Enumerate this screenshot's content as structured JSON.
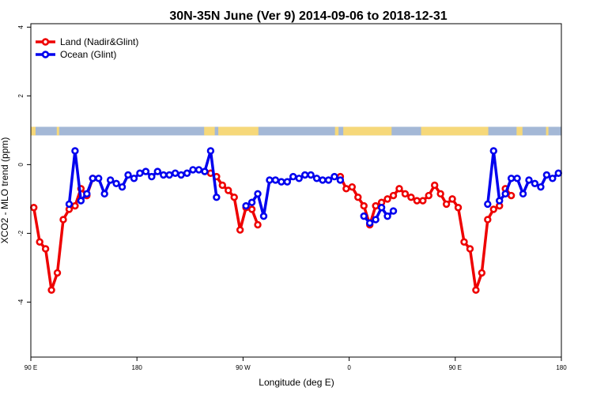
{
  "chart_data": {
    "type": "line",
    "title": "30N-35N June (Ver 9)   2014-09-06 to 2018-12-31",
    "xlabel": "Longitude (deg E)",
    "ylabel": "XCO2 - MLO trend (ppm)",
    "xlim": [
      90,
      540
    ],
    "ylim": [
      -5.6,
      4.1
    ],
    "x_ticks": [
      {
        "value": 90,
        "label": "90 E"
      },
      {
        "value": 180,
        "label": "180"
      },
      {
        "value": 270,
        "label": "90 W"
      },
      {
        "value": 360,
        "label": "0"
      },
      {
        "value": 450,
        "label": "90 E"
      },
      {
        "value": 540,
        "label": "180"
      }
    ],
    "y_ticks": [
      {
        "value": -4,
        "label": "-4"
      },
      {
        "value": -2,
        "label": "-2"
      },
      {
        "value": 0,
        "label": "0"
      },
      {
        "value": 2,
        "label": "2"
      },
      {
        "value": 4,
        "label": "4"
      }
    ],
    "legend_position": "top-left",
    "grid": false,
    "land_ocean_band": {
      "y_range": [
        0.85,
        1.1
      ],
      "land_color": "#f6d87a",
      "ocean_color": "#a4b8d6",
      "land_segments": [
        [
          90,
          94
        ],
        [
          112,
          114
        ],
        [
          237,
          246
        ],
        [
          249,
          283
        ],
        [
          348,
          351
        ],
        [
          355,
          396
        ],
        [
          421,
          478
        ],
        [
          502,
          507
        ],
        [
          527,
          529
        ]
      ]
    },
    "series": [
      {
        "name": "Land (Nadir&Glint)",
        "color": "#ee0000",
        "segments": [
          {
            "x": [
              92.5,
              97.5,
              102.5,
              107.5,
              112.5,
              117.5,
              122.5,
              127.5,
              132.5,
              137.5,
              142.5
            ],
            "y": [
              -1.25,
              -2.25,
              -2.45,
              -3.65,
              -3.15,
              -1.6,
              -1.3,
              -1.2,
              -0.7,
              -0.9,
              -0.4
            ]
          },
          {
            "x": [
              242.5,
              247.5,
              252.5,
              257.5,
              262.5,
              267.5,
              272.5,
              277.5,
              282.5
            ],
            "y": [
              -0.25,
              -0.35,
              -0.6,
              -0.75,
              -0.95,
              -1.9,
              -1.25,
              -1.3,
              -1.75
            ]
          },
          {
            "x": [
              352.5,
              357.5,
              362.5,
              367.5,
              372.5,
              377.5,
              382.5,
              387.5,
              392.5,
              397.5,
              402.5,
              407.5,
              412.5,
              417.5,
              422.5,
              427.5,
              432.5,
              437.5,
              442.5,
              447.5,
              452.5,
              457.5,
              462.5,
              467.5,
              472.5,
              477.5,
              482.5,
              487.5
            ],
            "y": [
              -0.35,
              -0.7,
              -0.65,
              -0.95,
              -1.2,
              -1.75,
              -1.2,
              -1.1,
              -1.0,
              -0.9,
              -0.7,
              -0.85,
              -0.95,
              -1.05,
              -1.05,
              -0.9,
              -0.6,
              -0.85,
              -1.15,
              -1.0,
              -1.25,
              -2.25,
              -2.45,
              -3.65,
              -3.15,
              -1.6,
              -1.3,
              -1.2
            ]
          },
          {
            "x": [
              492.5,
              497.5
            ],
            "y": [
              -0.7,
              -0.9
            ]
          }
        ]
      },
      {
        "name": "Ocean (Glint)",
        "color": "#0000ee",
        "segments": [
          {
            "x": [
              122.5,
              127.5,
              132.5,
              137.5,
              142.5,
              147.5,
              152.5,
              157.5,
              162.5,
              167.5,
              172.5,
              177.5,
              182.5,
              187.5,
              192.5,
              197.5,
              202.5,
              207.5,
              212.5,
              217.5,
              222.5,
              227.5,
              232.5,
              237.5,
              242.5,
              247.5
            ],
            "y": [
              -1.15,
              0.4,
              -1.05,
              -0.85,
              -0.4,
              -0.4,
              -0.85,
              -0.45,
              -0.55,
              -0.65,
              -0.3,
              -0.4,
              -0.25,
              -0.2,
              -0.35,
              -0.2,
              -0.3,
              -0.3,
              -0.25,
              -0.3,
              -0.25,
              -0.15,
              -0.15,
              -0.2,
              0.4,
              -0.95
            ]
          },
          {
            "x": [
              272.5,
              277.5,
              282.5,
              287.5,
              292.5,
              297.5,
              302.5,
              307.5,
              312.5,
              317.5,
              322.5,
              327.5,
              332.5,
              337.5,
              342.5,
              347.5,
              352.5
            ],
            "y": [
              -1.2,
              -1.1,
              -0.85,
              -1.5,
              -0.45,
              -0.45,
              -0.5,
              -0.5,
              -0.35,
              -0.4,
              -0.3,
              -0.3,
              -0.4,
              -0.45,
              -0.45,
              -0.35,
              -0.45
            ]
          },
          {
            "x": [
              372.5,
              377.5,
              382.5,
              387.5,
              392.5,
              397.5
            ],
            "y": [
              -1.5,
              -1.7,
              -1.6,
              -1.25,
              -1.5,
              -1.35
            ]
          },
          {
            "x": [
              477.5,
              482.5,
              487.5,
              492.5,
              497.5,
              502.5,
              507.5,
              512.5,
              517.5,
              522.5,
              527.5,
              532.5,
              537.5
            ],
            "y": [
              -1.15,
              0.4,
              -1.05,
              -0.85,
              -0.4,
              -0.4,
              -0.85,
              -0.45,
              -0.55,
              -0.65,
              -0.3,
              -0.4,
              -0.25
            ]
          }
        ]
      }
    ]
  }
}
